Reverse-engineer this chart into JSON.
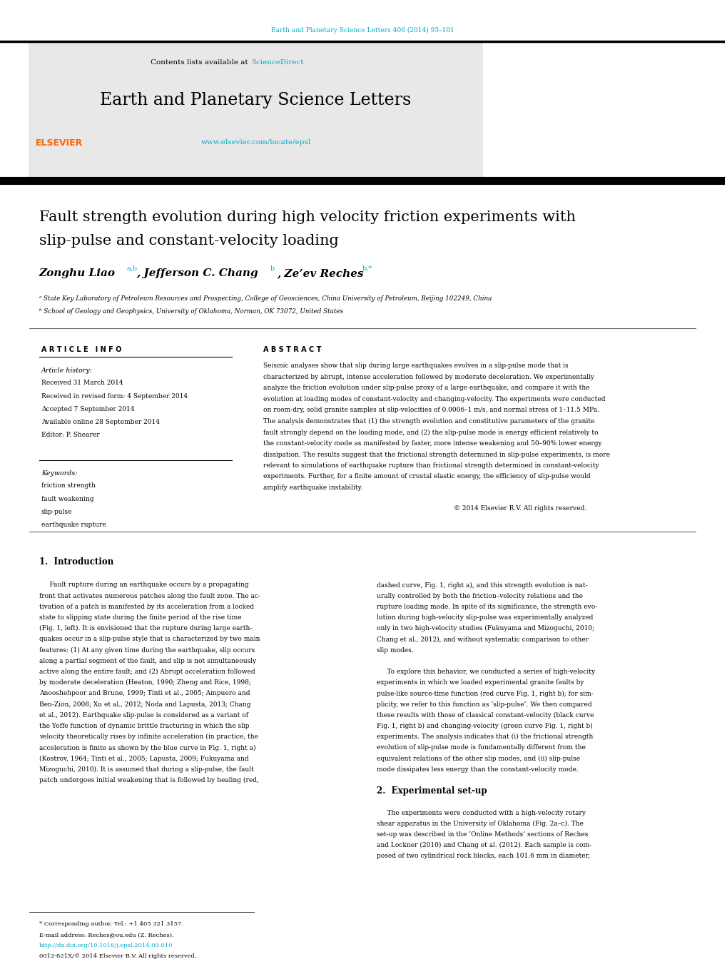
{
  "page_width": 10.2,
  "page_height": 13.51,
  "bg_color": "#ffffff",
  "journal_ref_color": "#00aacc",
  "journal_ref": "Earth and Planetary Science Letters 406 (2014) 93–101",
  "header_bg": "#e8e8e8",
  "header_border_color": "#000000",
  "contents_text": "Contents lists available at ",
  "sciencedirect_text": "ScienceDirect",
  "sciencedirect_color": "#00aacc",
  "journal_name": "Earth and Planetary Science Letters",
  "journal_url": "www.elsevier.com/locate/epsl",
  "journal_url_color": "#00aacc",
  "elsevier_color": "#ff6600",
  "header_bar_color": "#111111",
  "paper_title_line1": "Fault strength evolution during high velocity friction experiments with",
  "paper_title_line2": "slip-pulse and constant-velocity loading",
  "title_font_size": 15,
  "author_font_size": 11,
  "affil_a": "ᵃ State Key Laboratory of Petroleum Resources and Prospecting, College of Geosciences, China University of Petroleum, Beijing 102249, China",
  "affil_b": "ᵇ School of Geology and Geophysics, University of Oklahoma, Norman, OK 73072, United States",
  "section_article_info": "A R T I C L E   I N F O",
  "section_abstract": "A B S T R A C T",
  "article_history_label": "Article history:",
  "received": "Received 31 March 2014",
  "received_revised": "Received in revised form: 4 September 2014",
  "accepted": "Accepted 7 September 2014",
  "available": "Available online 28 September 2014",
  "editor": "Editor: P. Shearer",
  "keywords_label": "Keywords:",
  "keywords": [
    "friction strength",
    "fault weakening",
    "slip-pulse",
    "earthquake rupture"
  ],
  "copyright": "© 2014 Elsevier R.V. All rights reserved.",
  "intro_heading": "1.  Introduction",
  "exp_heading": "2.  Experimental set-up",
  "footnote_text": "* Corresponding author. Tel.: +1 405 321 3157.",
  "footnote_email": "E-mail address: Reches@ou.edu (Z. Reches).",
  "footnote_doi": "http://dx.doi.org/10.1016/j.epsl.2014.09.010",
  "footnote_issn": "0012-821X/© 2014 Elsevier B.V. All rights reserved."
}
